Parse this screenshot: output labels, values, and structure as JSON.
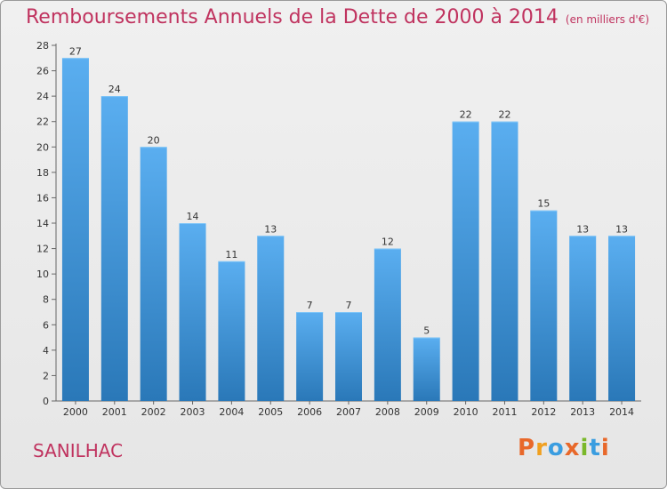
{
  "header": {
    "title": "Remboursements Annuels de la Dette de 2000 à 2014",
    "unit": "(en milliers d'€)"
  },
  "footer": {
    "town": "SANILHAC",
    "brand": "Proxiti"
  },
  "colors": {
    "title": "#c0335f",
    "bar_light": "#5aaef0",
    "bar_dark": "#2a78b8",
    "brand_letters": [
      "#e8682a",
      "#f0a020",
      "#3a9de0",
      "#e8682a",
      "#7ab82a",
      "#3a9de0",
      "#e8682a"
    ]
  },
  "chart_data": {
    "type": "bar",
    "categories": [
      "2000",
      "2001",
      "2002",
      "2003",
      "2004",
      "2005",
      "2006",
      "2007",
      "2008",
      "2009",
      "2010",
      "2011",
      "2012",
      "2013",
      "2014"
    ],
    "values": [
      27,
      24,
      20,
      14,
      11,
      13,
      7,
      7,
      12,
      5,
      22,
      22,
      15,
      13,
      13
    ],
    "yticks": [
      0,
      2,
      4,
      6,
      8,
      10,
      12,
      14,
      16,
      18,
      20,
      22,
      24,
      26,
      28
    ],
    "ylim": [
      0,
      28
    ],
    "grid": false,
    "data_labels": true
  }
}
